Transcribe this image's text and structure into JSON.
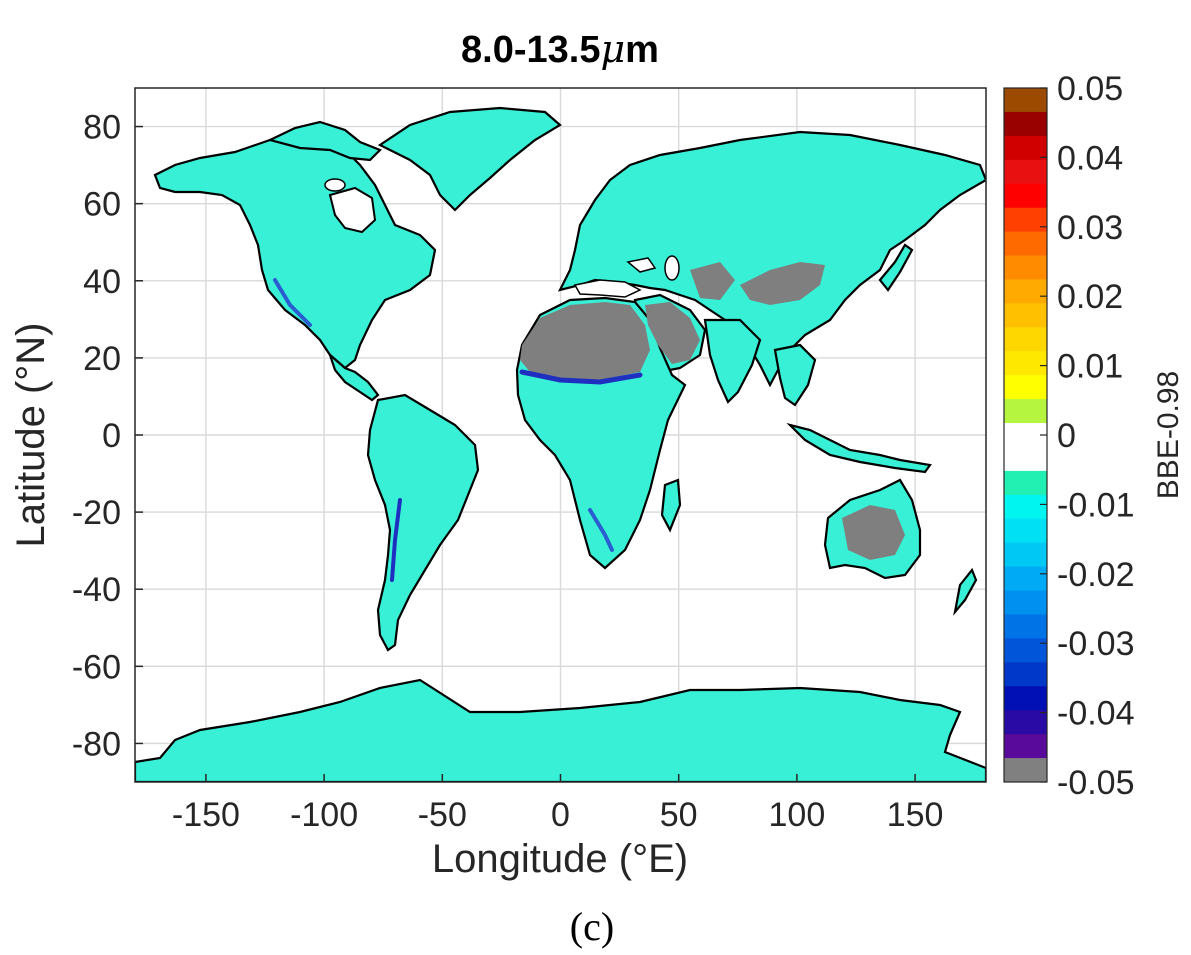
{
  "figure": {
    "title_prefix": "8.0-13.5",
    "title_mu": "μ",
    "title_suffix": "m",
    "caption": "(c)"
  },
  "chart_data": {
    "type": "heatmap",
    "title": "8.0-13.5μm",
    "xlabel": "Longitude (°E)",
    "ylabel": "Latitude (°N)",
    "xlim": [
      -180,
      180
    ],
    "ylim": [
      -90,
      90
    ],
    "x_ticks": [
      -150,
      -100,
      -50,
      0,
      50,
      100,
      150
    ],
    "y_ticks": [
      80,
      60,
      40,
      20,
      0,
      -20,
      -40,
      -60,
      -80
    ],
    "x_tick_labels": [
      "-150",
      "-100",
      "-50",
      "0",
      "50",
      "100",
      "150"
    ],
    "y_tick_labels": [
      "80",
      "60",
      "40",
      "20",
      "0",
      "-20",
      "-40",
      "-60",
      "-80"
    ],
    "grid": true,
    "colorbar": {
      "label": "BBE-0.98",
      "range": [
        -0.05,
        0.05
      ],
      "ticks": [
        0.05,
        0.04,
        0.03,
        0.02,
        0.01,
        0,
        -0.01,
        -0.02,
        -0.03,
        -0.04,
        -0.05
      ],
      "tick_labels": [
        "0.05",
        "0.04",
        "0.03",
        "0.02",
        "0.01",
        "0",
        "-0.01",
        "-0.02",
        "-0.03",
        "-0.04",
        "-0.05"
      ],
      "colors_top_to_bottom": [
        "#9c4a00",
        "#990000",
        "#d00000",
        "#e81010",
        "#ff0000",
        "#ff4000",
        "#ff6a00",
        "#ff8c00",
        "#ffaa00",
        "#ffc000",
        "#ffd700",
        "#ffe800",
        "#ffff00",
        "#b5f53f",
        "#ffffff",
        "#ffffff",
        "#22f0b2",
        "#00f5f0",
        "#00e0f5",
        "#00c8f5",
        "#00aaf5",
        "#0090f0",
        "#0073e6",
        "#0055d9",
        "#0038c9",
        "#0010b5",
        "#2a0aa5",
        "#5a0a9a",
        "#808080"
      ]
    },
    "regions": [
      {
        "name": "land",
        "value": -0.01,
        "color": "#38f0d6"
      },
      {
        "name": "Sahara / Arabia / Australian interior / Tibetan Plateau",
        "value": -0.05,
        "color": "#808080"
      }
    ]
  }
}
